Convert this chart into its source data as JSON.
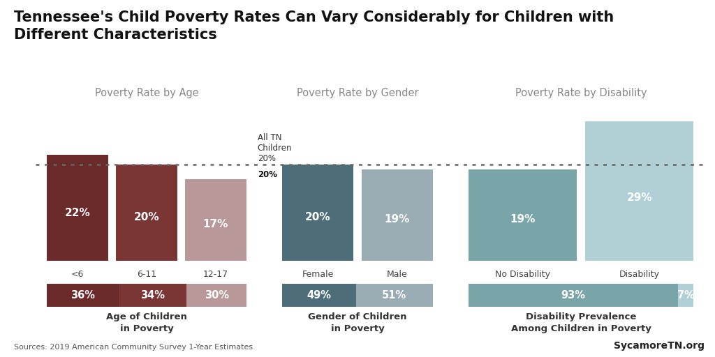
{
  "title": "Tennessee's Child Poverty Rates Can Vary Considerably for Children with\nDifferent Characteristics",
  "reference_line": 20,
  "reference_label": "All TN\nChildren\n20%",
  "sections": [
    {
      "subtitle": "Poverty Rate by Age",
      "bar_labels": [
        "<6",
        "6-11",
        "12-17"
      ],
      "bar_values": [
        22,
        20,
        17
      ],
      "bar_colors": [
        "#6b2b2b",
        "#7a3535",
        "#b89898"
      ],
      "bar_text": [
        "22%",
        "20%",
        "17%"
      ],
      "bottom_labels": [
        "36%",
        "34%",
        "30%"
      ],
      "bottom_colors": [
        "#6b2b2b",
        "#7a3535",
        "#b89898"
      ],
      "bottom_title": "Age of Children\nin Poverty"
    },
    {
      "subtitle": "Poverty Rate by Gender",
      "bar_labels": [
        "Female",
        "Male"
      ],
      "bar_values": [
        20,
        19
      ],
      "bar_colors": [
        "#4d6e78",
        "#9aacb4"
      ],
      "bar_text": [
        "20%",
        "19%"
      ],
      "bottom_labels": [
        "49%",
        "51%"
      ],
      "bottom_colors": [
        "#4d6e78",
        "#9aacb4"
      ],
      "bottom_title": "Gender of Children\nin Poverty"
    },
    {
      "subtitle": "Poverty Rate by Disability",
      "bar_labels": [
        "No Disability",
        "Disability"
      ],
      "bar_values": [
        19,
        29
      ],
      "bar_colors": [
        "#7aa5a8",
        "#b0d0d5"
      ],
      "bar_text": [
        "19%",
        "29%"
      ],
      "bottom_labels": [
        "93%",
        "7%"
      ],
      "bottom_colors": [
        "#7aa5a8",
        "#b0d0d5"
      ],
      "bottom_title": "Disability Prevalence\nAmong Children in Poverty"
    }
  ],
  "ylim_max": 32,
  "source_text": "Sources: 2019 American Community Survey 1-Year Estimates",
  "credit_text": "SycamoreTN.org",
  "bg_color": "#ffffff",
  "dotted_line_color": "#666666"
}
